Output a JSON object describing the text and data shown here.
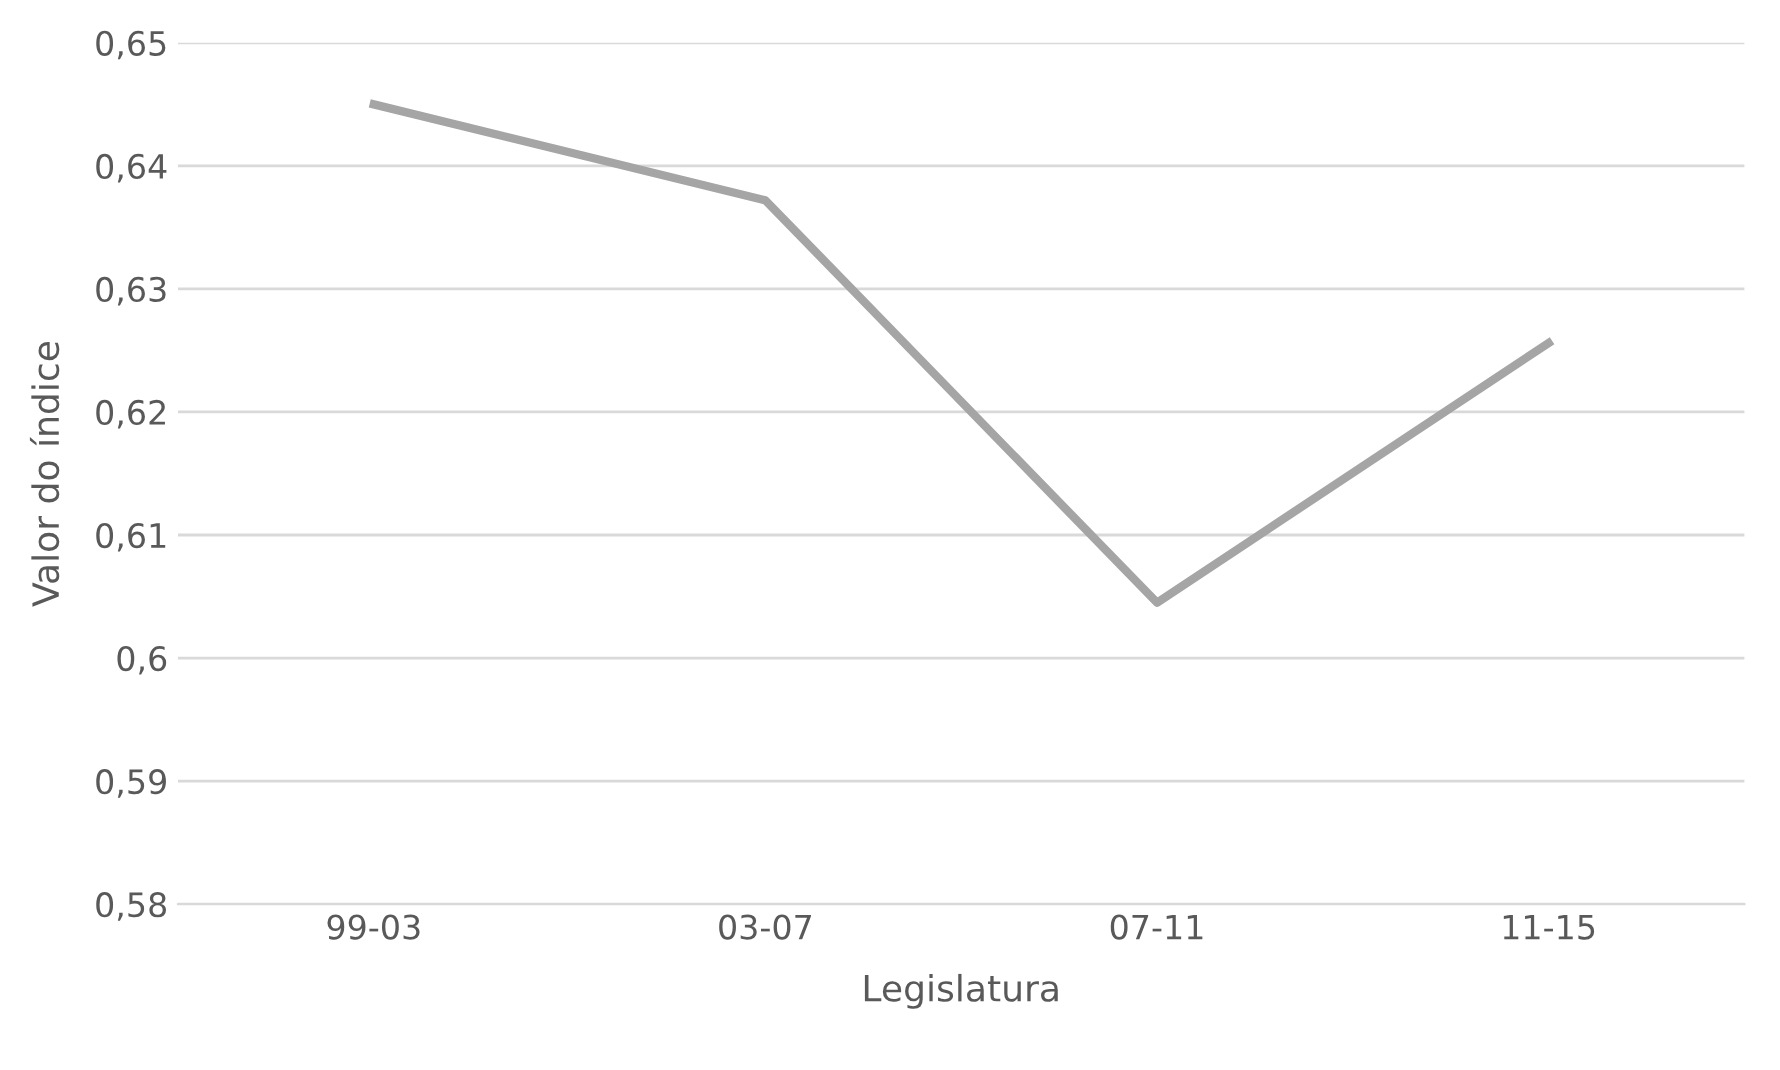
{
  "chart_data": {
    "type": "line",
    "xlabel": "Legislatura",
    "ylabel": "Valor do índice",
    "categories": [
      "99-03",
      "03-07",
      "07-11",
      "11-15"
    ],
    "series": [
      {
        "color": "#a5a5a5",
        "values": [
          0.645,
          0.6372,
          0.6045,
          0.6256
        ]
      }
    ],
    "ylim": [
      0.58,
      0.65
    ],
    "yticks": [
      {
        "value": 0.58,
        "label": "0,58"
      },
      {
        "value": 0.59,
        "label": "0,59"
      },
      {
        "value": 0.6,
        "label": "0,6"
      },
      {
        "value": 0.61,
        "label": "0,61"
      },
      {
        "value": 0.62,
        "label": "0,62"
      },
      {
        "value": 0.63,
        "label": "0,63"
      },
      {
        "value": 0.64,
        "label": "0,64"
      },
      {
        "value": 0.65,
        "label": "0,65"
      }
    ],
    "grid": "y",
    "legend": false,
    "marker": "none",
    "line_style": "solid"
  }
}
